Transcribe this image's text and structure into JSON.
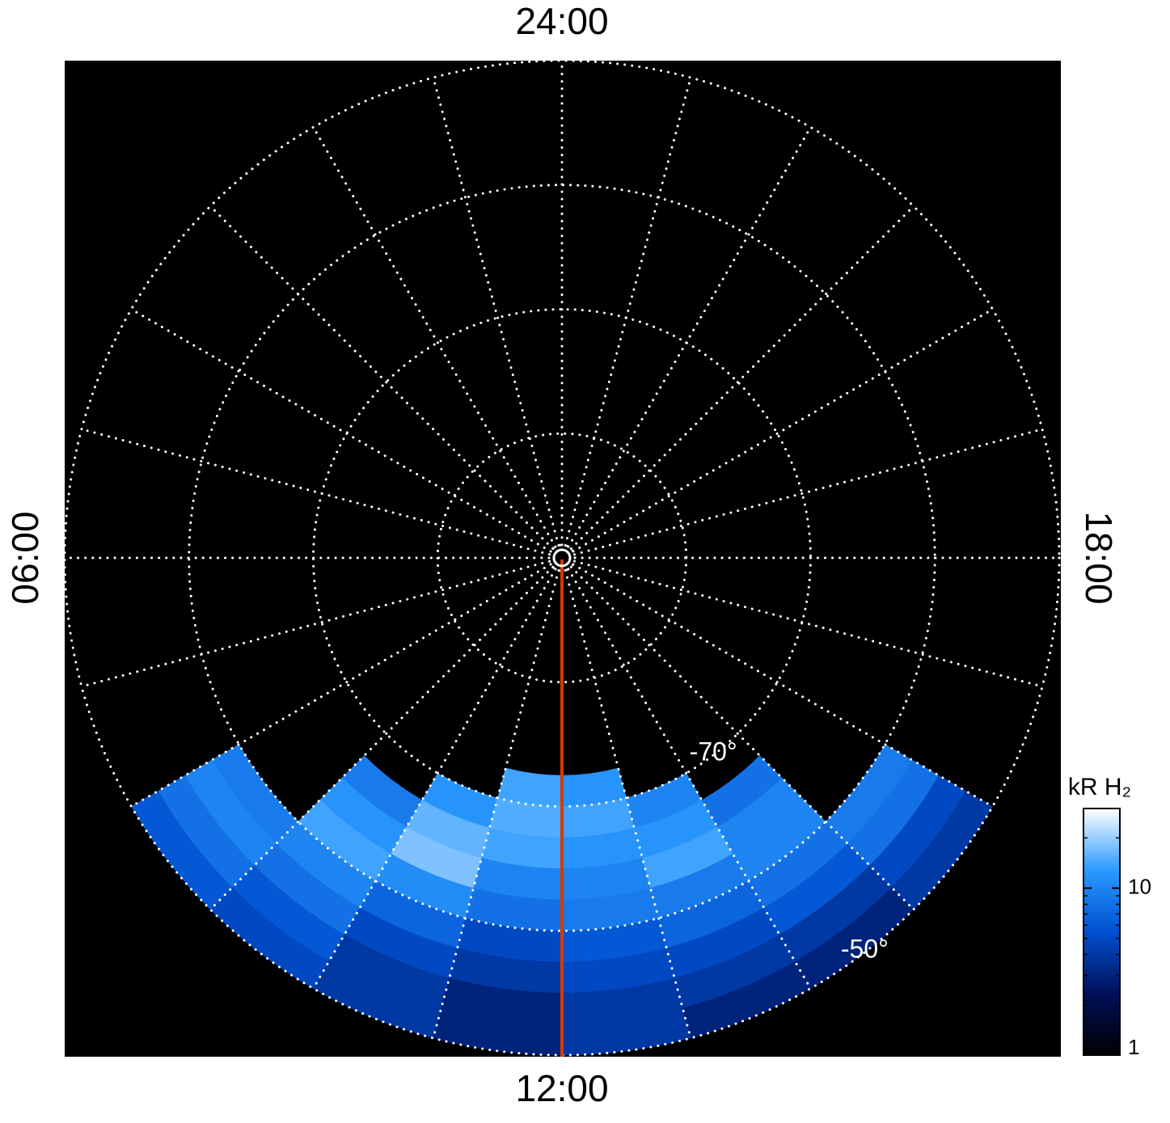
{
  "chart_data": {
    "type": "polar-image",
    "latlim": [
      -90,
      -50
    ],
    "lat_rings": [
      -80,
      -70,
      -60,
      -50
    ],
    "lt_grid": [
      0,
      1,
      2,
      3,
      4,
      5,
      6,
      7,
      8,
      9,
      10,
      11,
      12,
      13,
      14,
      15,
      16,
      17,
      18,
      19,
      20,
      21,
      22,
      23
    ],
    "lt_ticks": [
      {
        "value": 0,
        "label": "24:00"
      },
      {
        "value": 6,
        "label": "06:00"
      },
      {
        "value": 12,
        "label": "12:00"
      },
      {
        "value": 18,
        "label": "18:00"
      }
    ],
    "lat_labels": [
      {
        "value": -70,
        "label": "-70°"
      },
      {
        "value": -50,
        "label": "-50°"
      }
    ],
    "grid_color": "#ffffff",
    "marker_color": "#d43a00",
    "emission": {
      "lat_bins": [
        -75,
        -72.5,
        -70,
        -67.5,
        -65,
        -62.5,
        -60,
        -57.5,
        -55,
        -52.5,
        -50
      ],
      "lt_bins": [
        7,
        8,
        9,
        10,
        11,
        12,
        13,
        14,
        15,
        16,
        17
      ],
      "values": [
        [
          null,
          null,
          null,
          null,
          null,
          null,
          null,
          null,
          null,
          null
        ],
        [
          null,
          null,
          null,
          null,
          14,
          12,
          null,
          null,
          null,
          null
        ],
        [
          null,
          null,
          null,
          12,
          15,
          14,
          10,
          null,
          null,
          null
        ],
        [
          null,
          null,
          9,
          16,
          14,
          12,
          12,
          8,
          null,
          null
        ],
        [
          null,
          null,
          12,
          18,
          10,
          10,
          14,
          10,
          null,
          null
        ],
        [
          null,
          null,
          14,
          11,
          8,
          9,
          9,
          10,
          null,
          null
        ],
        [
          null,
          9,
          10,
          7,
          5,
          6,
          7,
          8,
          9,
          null
        ],
        [
          null,
          10,
          8,
          5,
          4,
          5,
          5,
          6,
          8,
          null
        ],
        [
          null,
          8,
          6,
          4,
          3,
          4,
          4,
          4,
          5,
          null
        ],
        [
          null,
          6,
          5,
          4,
          3,
          4,
          3,
          3,
          4,
          null
        ]
      ]
    },
    "colorbar": {
      "label": "kR H₂",
      "scale": "log",
      "lim": [
        1,
        30
      ],
      "ticks": [
        1,
        10
      ],
      "minor_ticks": [
        2,
        3,
        4,
        5,
        6,
        7,
        8,
        9,
        20
      ],
      "colormap": [
        "#000000",
        "#00105a",
        "#0050d0",
        "#2a9aff",
        "#ffffff"
      ]
    }
  }
}
